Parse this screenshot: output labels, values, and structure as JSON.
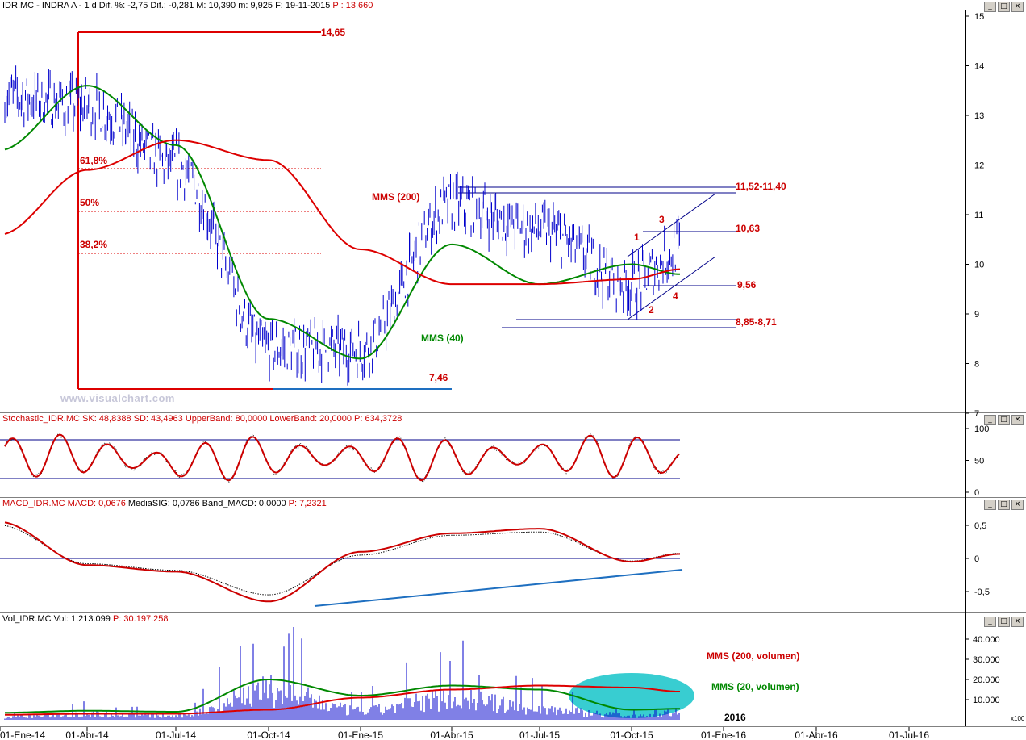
{
  "header": {
    "main": "IDR.MC - INDRA A -  1 d Dif. %: -2,75  Dif.: -0,281  M: 10,390  m: 9,925  F: 19-11-2015",
    "main_p": "P : 13,660",
    "stoch_a": "Stochastic_IDR.MC  SK: 48,8388  SD: 43,4963  UpperBand: 80,0000  LowerBand: 20,0000",
    "stoch_p": "P: 634,3728",
    "macd_a": "MACD_IDR.MC  MACD: 0,0676",
    "macd_b": "MediaSIG: 0,0786",
    "macd_c": "Band_MACD: 0,0000",
    "macd_p": "P: 7,2321",
    "vol_a": "Vol_IDR.MC  Vol: 1.213.099",
    "vol_p": "P: 30.197.258"
  },
  "watermark": "www.visualchart.com",
  "x_labels": [
    "01-Ene-14",
    "01-Abr-14",
    "01-Jul-14",
    "01-Oct-14",
    "01-Ene-15",
    "01-Abr-15",
    "01-Jul-15",
    "01-Oct-15",
    "01-Ene-16",
    "01-Abr-16",
    "01-Jul-16"
  ],
  "year_label": "2016",
  "price_ticks": [
    "15",
    "14",
    "13",
    "12",
    "11",
    "10",
    "9",
    "8",
    "7"
  ],
  "stoch_ticks": [
    "100",
    "50",
    "0"
  ],
  "macd_ticks": [
    "0,5",
    "0",
    "-0,5"
  ],
  "vol_ticks": [
    "40.000",
    "30.000",
    "20.000",
    "10.000"
  ],
  "vol_unit": "x100",
  "annotations": {
    "high": "14,65",
    "low": "7,46",
    "fib618": "61,8%",
    "fib50": "50%",
    "fib382": "38,2%",
    "res1": "11,52-11,40",
    "res2": "10,63",
    "sup1": "9,56",
    "sup2": "8,85-8,71",
    "mms200": "MMS (200)",
    "mms40": "MMS (40)",
    "vol200": "MMS (200, volumen)",
    "vol20": "MMS (20, volumen)",
    "w1": "1",
    "w2": "2",
    "w3": "3",
    "w4": "4"
  },
  "colors": {
    "price": "#0000cc",
    "mms200": "#dd0000",
    "mms40": "#008800",
    "stoch": "#cc0000",
    "macd": "#cc0000",
    "trend": "#1e6fc0",
    "label_red": "#cc0000",
    "label_green": "#008800",
    "volume_highlight": "#22c8cc"
  },
  "chart_data": [
    {
      "type": "line",
      "title": "IDR.MC - INDRA A - 1 d",
      "x": [
        "01-Ene-14",
        "01-Abr-14",
        "01-Jul-14",
        "01-Oct-14",
        "01-Ene-15",
        "01-Abr-15",
        "01-Jul-15",
        "01-Oct-15",
        "19-11-2015"
      ],
      "series": [
        {
          "name": "IDR.MC",
          "values": [
            13.4,
            13.2,
            12.0,
            8.3,
            8.3,
            11.2,
            10.7,
            9.6,
            10.3
          ]
        },
        {
          "name": "MMS (40)",
          "values": [
            12.3,
            13.6,
            12.4,
            8.9,
            8.1,
            10.4,
            9.6,
            10.0,
            9.8
          ]
        },
        {
          "name": "MMS (200)",
          "values": [
            10.6,
            11.9,
            12.5,
            12.1,
            10.3,
            9.6,
            9.6,
            9.7,
            9.9
          ]
        }
      ],
      "levels": {
        "high": 14.65,
        "low": 7.46,
        "fib_618": 11.9,
        "fib_50": 11.05,
        "fib_382": 10.2,
        "resistance_1": [
          11.52,
          11.4
        ],
        "resistance_2": 10.63,
        "support_1": 9.56,
        "support_2": [
          8.85,
          8.71
        ]
      },
      "ylim": [
        7,
        15
      ]
    },
    {
      "type": "line",
      "title": "Stochastic_IDR.MC",
      "x": [
        "01-Ene-14",
        "01-Abr-14",
        "01-Jul-14",
        "01-Oct-14",
        "01-Ene-15",
        "01-Abr-15",
        "01-Jul-15",
        "01-Oct-15",
        "19-11-2015"
      ],
      "series": [
        {
          "name": "SK",
          "values": [
            85,
            90,
            30,
            80,
            80,
            55,
            90,
            85,
            48.84
          ]
        }
      ],
      "bands": [
        20,
        80
      ],
      "ylim": [
        0,
        100
      ]
    },
    {
      "type": "line",
      "title": "MACD_IDR.MC",
      "x": [
        "01-Ene-14",
        "01-Abr-14",
        "01-Jul-14",
        "01-Oct-14",
        "01-Ene-15",
        "01-Abr-15",
        "01-Jul-15",
        "01-Oct-15",
        "19-11-2015"
      ],
      "series": [
        {
          "name": "MACD",
          "values": [
            0.55,
            -0.1,
            -0.2,
            -0.65,
            0.1,
            0.38,
            0.45,
            -0.05,
            0.0676
          ]
        },
        {
          "name": "MediaSIG",
          "values": [
            0.5,
            -0.08,
            -0.18,
            -0.55,
            0.05,
            0.35,
            0.4,
            -0.04,
            0.0786
          ]
        }
      ],
      "ylim": [
        -0.85,
        0.75
      ]
    },
    {
      "type": "bar",
      "title": "Vol_IDR.MC",
      "x": [
        "01-Ene-14",
        "01-Abr-14",
        "01-Jul-14",
        "01-Oct-14",
        "01-Ene-15",
        "01-Abr-15",
        "01-Jul-15",
        "01-Oct-15",
        "19-11-2015"
      ],
      "series": [
        {
          "name": "Vol",
          "values": [
            4000,
            8000,
            5000,
            40000,
            12000,
            30000,
            15000,
            6000,
            12131
          ]
        },
        {
          "name": "MMS (20, volumen)",
          "values": [
            3500,
            4500,
            4000,
            20000,
            12000,
            17000,
            15000,
            5000,
            5500
          ]
        },
        {
          "name": "MMS (200, volumen)",
          "values": [
            2500,
            3000,
            3000,
            5000,
            11000,
            15000,
            17000,
            16000,
            14000
          ]
        }
      ],
      "unit": "x100",
      "ylim": [
        0,
        48000
      ]
    }
  ]
}
